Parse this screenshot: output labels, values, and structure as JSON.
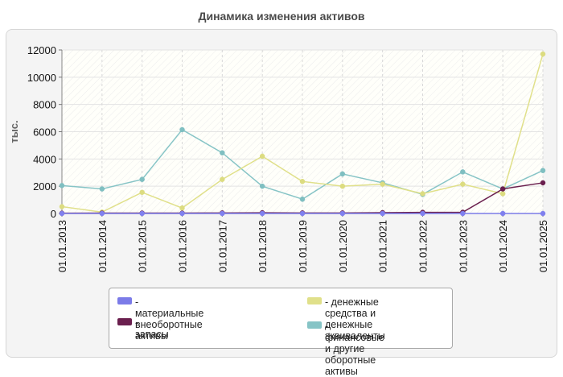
{
  "chart_data": {
    "type": "line",
    "title": "Динамика изменения активов",
    "ylabel": "тыс.",
    "xlabel": "",
    "ylim": [
      0,
      12000
    ],
    "yticks": [
      0,
      2000,
      4000,
      6000,
      8000,
      10000,
      12000
    ],
    "categories": [
      "01.01.2013",
      "01.01.2014",
      "01.01.2015",
      "01.01.2016",
      "01.01.2017",
      "01.01.2018",
      "01.01.2019",
      "01.01.2020",
      "01.01.2021",
      "01.01.2022",
      "01.01.2023",
      "01.01.2024",
      "01.01.2025"
    ],
    "series": [
      {
        "name": "материальные внеоборотные активы",
        "color": "#7b7be8",
        "marker": "#8080ee",
        "values": [
          0,
          0,
          0,
          0,
          0,
          0,
          0,
          0,
          0,
          0,
          0,
          0,
          0
        ]
      },
      {
        "name": "запасы",
        "color": "#6a1f4e",
        "marker": "#6a1f4e",
        "values": [
          20,
          30,
          30,
          30,
          40,
          50,
          40,
          40,
          60,
          80,
          90,
          1800,
          2250
        ]
      },
      {
        "name": "денежные средства и денежные эквиваленты",
        "color": "#e0e08a",
        "marker": "#dcdc80",
        "values": [
          500,
          100,
          1550,
          400,
          2500,
          4200,
          2350,
          2000,
          2150,
          1450,
          2150,
          1450,
          11700
        ]
      },
      {
        "name": "финансовые и другие оборотные активы",
        "color": "#86c4c6",
        "marker": "#7fbfc1",
        "values": [
          2050,
          1800,
          2500,
          6150,
          4450,
          2000,
          1050,
          2900,
          2250,
          1400,
          3050,
          1800,
          3150
        ]
      }
    ]
  },
  "legend": {
    "items": [
      {
        "lines": [
          "- материальные внеоборотные",
          "активы"
        ],
        "color": "#7b7be8"
      },
      {
        "lines": [
          "- запасы"
        ],
        "color": "#6a1f4e"
      },
      {
        "lines": [
          "- денежные средства и",
          "денежные эквиваленты"
        ],
        "color": "#e0e08a"
      },
      {
        "lines": [
          "- финансовые и другие",
          "оборотные активы"
        ],
        "color": "#86c4c6"
      }
    ]
  }
}
